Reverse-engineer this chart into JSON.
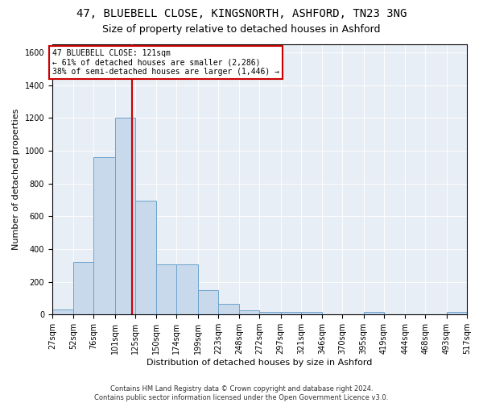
{
  "title1": "47, BLUEBELL CLOSE, KINGSNORTH, ASHFORD, TN23 3NG",
  "title2": "Size of property relative to detached houses in Ashford",
  "xlabel": "Distribution of detached houses by size in Ashford",
  "ylabel": "Number of detached properties",
  "footer": "Contains HM Land Registry data © Crown copyright and database right 2024.\nContains public sector information licensed under the Open Government Licence v3.0.",
  "annotation_text": "47 BLUEBELL CLOSE: 121sqm\n← 61% of detached houses are smaller (2,286)\n38% of semi-detached houses are larger (1,446) →",
  "bin_edges": [
    27,
    52,
    76,
    101,
    125,
    150,
    174,
    199,
    223,
    248,
    272,
    297,
    321,
    346,
    370,
    395,
    419,
    444,
    468,
    493,
    517
  ],
  "bar_heights": [
    30,
    320,
    960,
    1200,
    695,
    305,
    305,
    150,
    65,
    25,
    15,
    15,
    15,
    0,
    0,
    15,
    0,
    0,
    0,
    15
  ],
  "bar_color": "#c9d9ec",
  "bar_edge_color": "#6da3cc",
  "vline_color": "#cc0000",
  "vline_x": 121,
  "ylim": [
    0,
    1650
  ],
  "yticks": [
    0,
    200,
    400,
    600,
    800,
    1000,
    1200,
    1400,
    1600
  ],
  "bg_color": "#e8eef5",
  "annotation_box_color": "#cc0000",
  "title1_fontsize": 10,
  "title2_fontsize": 9,
  "xlabel_fontsize": 8,
  "ylabel_fontsize": 8,
  "tick_fontsize": 7
}
